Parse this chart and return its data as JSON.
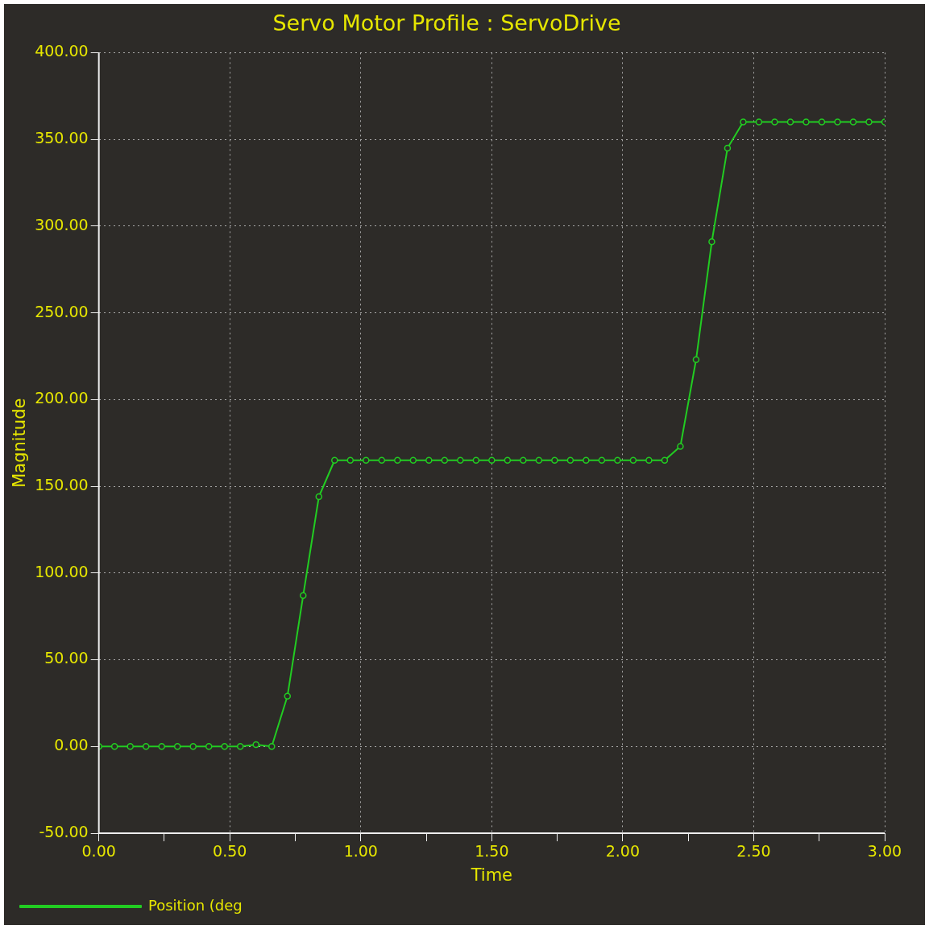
{
  "chart_data": {
    "type": "line",
    "title": "Servo Motor Profile : ServoDrive",
    "xlabel": "Time",
    "ylabel": "Magnitude",
    "x": [
      0,
      0.06,
      0.12,
      0.18,
      0.24,
      0.3,
      0.36,
      0.42,
      0.48,
      0.54,
      0.6,
      0.66,
      0.72,
      0.78,
      0.84,
      0.9,
      0.96,
      1.02,
      1.08,
      1.14,
      1.2,
      1.26,
      1.32,
      1.38,
      1.44,
      1.5,
      1.56,
      1.62,
      1.68,
      1.74,
      1.8,
      1.86,
      1.92,
      1.98,
      2.04,
      2.1,
      2.16,
      2.22,
      2.28,
      2.34,
      2.4,
      2.46,
      2.52,
      2.58,
      2.64,
      2.7,
      2.76,
      2.82,
      2.88,
      2.94,
      3.0
    ],
    "series": [
      {
        "name": "Position (deg",
        "color": "#22cc22",
        "values": [
          0,
          0,
          0,
          0,
          0,
          0,
          0,
          0,
          0,
          0,
          1,
          0,
          29,
          87,
          144,
          165,
          165,
          165,
          165,
          165,
          165,
          165,
          165,
          165,
          165,
          165,
          165,
          165,
          165,
          165,
          165,
          165,
          165,
          165,
          165,
          165,
          165,
          173,
          223,
          291,
          345,
          360,
          360,
          360,
          360,
          360,
          360,
          360,
          360,
          360,
          360
        ]
      }
    ],
    "xlim": [
      0,
      3
    ],
    "ylim": [
      -50,
      400
    ],
    "xticks": [
      {
        "value": 0,
        "label": "0.00"
      },
      {
        "value": 0.25,
        "label": null
      },
      {
        "value": 0.5,
        "label": "0.50"
      },
      {
        "value": 0.75,
        "label": null
      },
      {
        "value": 1,
        "label": "1.00"
      },
      {
        "value": 1.25,
        "label": null
      },
      {
        "value": 1.5,
        "label": "1.50"
      },
      {
        "value": 1.75,
        "label": null
      },
      {
        "value": 2,
        "label": "2.00"
      },
      {
        "value": 2.25,
        "label": null
      },
      {
        "value": 2.5,
        "label": "2.50"
      },
      {
        "value": 2.75,
        "label": null
      },
      {
        "value": 3,
        "label": "3.00"
      }
    ],
    "yticks": [
      {
        "value": -50,
        "label": "-50.00"
      },
      {
        "value": 0,
        "label": "0.00"
      },
      {
        "value": 50,
        "label": "50.00"
      },
      {
        "value": 100,
        "label": "100.00"
      },
      {
        "value": 150,
        "label": "150.00"
      },
      {
        "value": 200,
        "label": "200.00"
      },
      {
        "value": 250,
        "label": "250.00"
      },
      {
        "value": 300,
        "label": "300.00"
      },
      {
        "value": 350,
        "label": "350.00"
      },
      {
        "value": 400,
        "label": "400.00"
      }
    ],
    "grid": true,
    "legend": "bottom left",
    "marker": "circle",
    "line_style": "solid"
  }
}
